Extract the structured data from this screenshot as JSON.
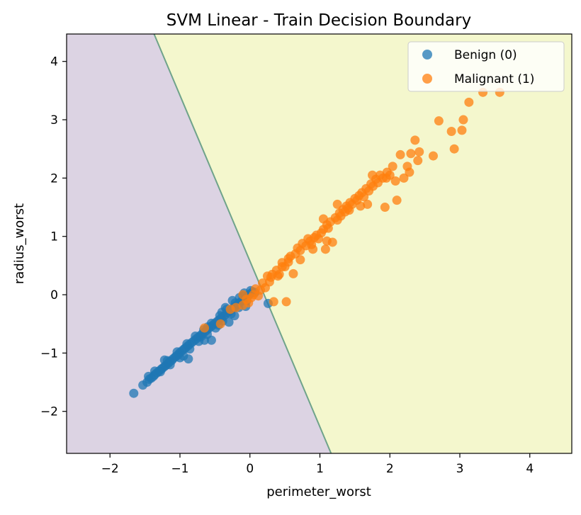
{
  "chart_data": {
    "type": "scatter",
    "title": "SVM Linear - Train Decision Boundary",
    "xlabel": "perimeter_worst",
    "ylabel": "radius_worst",
    "xlim": [
      -2.62,
      4.6
    ],
    "ylim": [
      -2.72,
      4.47
    ],
    "xticks": [
      -2,
      -1,
      0,
      1,
      2,
      3,
      4
    ],
    "yticks": [
      -2,
      -1,
      0,
      1,
      2,
      3,
      4
    ],
    "xtick_labels": [
      "−2",
      "−1",
      "0",
      "1",
      "2",
      "3",
      "4"
    ],
    "ytick_labels": [
      "−2",
      "−1",
      "0",
      "1",
      "2",
      "3",
      "4"
    ],
    "grid": false,
    "legend_position": "top-right",
    "decision_boundary": {
      "points": [
        [
          -1.37,
          4.47
        ],
        [
          1.16,
          -2.72
        ]
      ],
      "left_region_color": "#dcd3e3",
      "right_region_color": "#f4f7cd",
      "line_color": "#6fa38a"
    },
    "series": [
      {
        "name": "Benign (0)",
        "color": "#1f77b4",
        "points": [
          [
            -1.66,
            -1.69
          ],
          [
            -1.53,
            -1.55
          ],
          [
            -1.47,
            -1.5
          ],
          [
            -1.44,
            -1.45
          ],
          [
            -1.41,
            -1.43
          ],
          [
            -1.38,
            -1.4
          ],
          [
            -1.36,
            -1.37
          ],
          [
            -1.33,
            -1.34
          ],
          [
            -1.3,
            -1.31
          ],
          [
            -1.27,
            -1.28
          ],
          [
            -1.25,
            -1.26
          ],
          [
            -1.22,
            -1.23
          ],
          [
            -1.2,
            -1.21
          ],
          [
            -1.17,
            -1.18
          ],
          [
            -1.15,
            -1.15
          ],
          [
            -1.12,
            -1.13
          ],
          [
            -1.1,
            -1.1
          ],
          [
            -1.07,
            -1.07
          ],
          [
            -1.05,
            -1.05
          ],
          [
            -1.02,
            -1.02
          ],
          [
            -1.0,
            -0.99
          ],
          [
            -0.97,
            -0.96
          ],
          [
            -0.94,
            -0.93
          ],
          [
            -0.92,
            -0.91
          ],
          [
            -0.89,
            -0.88
          ],
          [
            -0.86,
            -0.85
          ],
          [
            -0.83,
            -0.82
          ],
          [
            -0.8,
            -0.79
          ],
          [
            -0.77,
            -0.76
          ],
          [
            -0.74,
            -0.73
          ],
          [
            -0.71,
            -0.7
          ],
          [
            -0.68,
            -0.67
          ],
          [
            -0.65,
            -0.64
          ],
          [
            -0.62,
            -0.61
          ],
          [
            -0.59,
            -0.58
          ],
          [
            -0.56,
            -0.55
          ],
          [
            -0.53,
            -0.52
          ],
          [
            -0.5,
            -0.49
          ],
          [
            -0.47,
            -0.46
          ],
          [
            -0.44,
            -0.43
          ],
          [
            -0.41,
            -0.4
          ],
          [
            -0.38,
            -0.37
          ],
          [
            -0.35,
            -0.34
          ],
          [
            -0.32,
            -0.31
          ],
          [
            -0.29,
            -0.28
          ],
          [
            -0.26,
            -0.25
          ],
          [
            -0.23,
            -0.22
          ],
          [
            -0.2,
            -0.19
          ],
          [
            -0.17,
            -0.16
          ],
          [
            -0.14,
            -0.13
          ],
          [
            -0.11,
            -0.1
          ],
          [
            -0.08,
            -0.07
          ],
          [
            -0.05,
            -0.04
          ],
          [
            -0.02,
            -0.01
          ],
          [
            0.01,
            0.02
          ],
          [
            0.04,
            0.05
          ],
          [
            0.07,
            0.04
          ],
          [
            -1.36,
            -1.31
          ],
          [
            -1.28,
            -1.32
          ],
          [
            -1.18,
            -1.13
          ],
          [
            -1.14,
            -1.2
          ],
          [
            -1.04,
            -0.98
          ],
          [
            -1.0,
            -1.08
          ],
          [
            -0.9,
            -0.84
          ],
          [
            -0.86,
            -0.93
          ],
          [
            -0.78,
            -0.71
          ],
          [
            -0.73,
            -0.8
          ],
          [
            -0.66,
            -0.6
          ],
          [
            -0.61,
            -0.68
          ],
          [
            -0.55,
            -0.49
          ],
          [
            -0.49,
            -0.57
          ],
          [
            -0.43,
            -0.36
          ],
          [
            -0.39,
            -0.45
          ],
          [
            -0.33,
            -0.25
          ],
          [
            -0.27,
            -0.33
          ],
          [
            -0.21,
            -0.14
          ],
          [
            -0.16,
            -0.22
          ],
          [
            -0.1,
            -0.02
          ],
          [
            -0.05,
            -0.11
          ],
          [
            0.01,
            0.07
          ],
          [
            -0.88,
            -1.1
          ],
          [
            -0.55,
            -0.78
          ],
          [
            -0.45,
            -0.52
          ],
          [
            -0.3,
            -0.47
          ],
          [
            -0.22,
            -0.36
          ],
          [
            -0.06,
            -0.2
          ],
          [
            0.26,
            -0.15
          ],
          [
            -0.95,
            -1.05
          ],
          [
            -0.7,
            -0.72
          ],
          [
            -0.65,
            -0.78
          ],
          [
            -0.6,
            -0.55
          ],
          [
            -0.4,
            -0.3
          ],
          [
            -0.35,
            -0.22
          ],
          [
            -0.25,
            -0.1
          ],
          [
            -0.15,
            -0.05
          ],
          [
            -0.08,
            0.03
          ],
          [
            -1.22,
            -1.12
          ],
          [
            -1.45,
            -1.4
          ]
        ]
      },
      {
        "name": "Malignant (1)",
        "color": "#ff7f0e",
        "points": [
          [
            -0.65,
            -0.57
          ],
          [
            -0.42,
            -0.5
          ],
          [
            -0.28,
            -0.25
          ],
          [
            -0.2,
            -0.22
          ],
          [
            -0.1,
            -0.18
          ],
          [
            -0.05,
            -0.08
          ],
          [
            0.02,
            -0.05
          ],
          [
            0.08,
            0.1
          ],
          [
            0.12,
            -0.02
          ],
          [
            0.18,
            0.2
          ],
          [
            0.22,
            0.12
          ],
          [
            0.25,
            0.32
          ],
          [
            0.3,
            0.3
          ],
          [
            0.34,
            -0.12
          ],
          [
            0.38,
            0.42
          ],
          [
            0.42,
            0.35
          ],
          [
            0.46,
            0.55
          ],
          [
            0.5,
            0.48
          ],
          [
            0.52,
            -0.12
          ],
          [
            0.55,
            0.62
          ],
          [
            0.58,
            0.66
          ],
          [
            0.62,
            0.36
          ],
          [
            0.65,
            0.7
          ],
          [
            0.68,
            0.8
          ],
          [
            0.72,
            0.76
          ],
          [
            0.75,
            0.88
          ],
          [
            0.8,
            0.84
          ],
          [
            0.83,
            0.96
          ],
          [
            0.86,
            0.92
          ],
          [
            0.88,
            0.86
          ],
          [
            0.92,
            0.98
          ],
          [
            0.95,
            1.02
          ],
          [
            0.98,
            0.96
          ],
          [
            1.02,
            1.06
          ],
          [
            1.05,
            1.12
          ],
          [
            1.08,
            0.78
          ],
          [
            1.1,
            1.2
          ],
          [
            1.12,
            1.14
          ],
          [
            1.15,
            1.25
          ],
          [
            1.18,
            0.9
          ],
          [
            1.22,
            1.32
          ],
          [
            1.25,
            1.28
          ],
          [
            1.28,
            1.4
          ],
          [
            1.3,
            1.35
          ],
          [
            1.33,
            1.46
          ],
          [
            1.36,
            1.42
          ],
          [
            1.38,
            1.52
          ],
          [
            1.4,
            1.48
          ],
          [
            1.43,
            1.58
          ],
          [
            1.46,
            1.55
          ],
          [
            1.5,
            1.65
          ],
          [
            1.53,
            1.62
          ],
          [
            1.56,
            1.7
          ],
          [
            1.58,
            1.52
          ],
          [
            1.6,
            1.75
          ],
          [
            1.63,
            1.68
          ],
          [
            1.66,
            1.82
          ],
          [
            1.7,
            1.78
          ],
          [
            1.73,
            1.9
          ],
          [
            1.76,
            1.86
          ],
          [
            1.8,
            1.98
          ],
          [
            1.83,
            1.92
          ],
          [
            1.86,
            2.05
          ],
          [
            1.9,
            2.0
          ],
          [
            1.93,
            1.5
          ],
          [
            1.96,
            2.1
          ],
          [
            2.0,
            2.05
          ],
          [
            2.04,
            2.2
          ],
          [
            2.08,
            1.95
          ],
          [
            2.1,
            1.62
          ],
          [
            2.15,
            2.4
          ],
          [
            2.2,
            2.0
          ],
          [
            2.25,
            2.2
          ],
          [
            2.28,
            2.1
          ],
          [
            2.3,
            2.42
          ],
          [
            2.36,
            2.65
          ],
          [
            2.4,
            2.3
          ],
          [
            2.42,
            2.45
          ],
          [
            2.62,
            2.38
          ],
          [
            2.7,
            2.98
          ],
          [
            2.88,
            2.8
          ],
          [
            2.92,
            2.5
          ],
          [
            3.03,
            2.82
          ],
          [
            3.05,
            3.0
          ],
          [
            3.13,
            3.3
          ],
          [
            3.33,
            3.47
          ],
          [
            3.57,
            3.47
          ],
          [
            0.46,
            0.48
          ],
          [
            0.55,
            0.56
          ],
          [
            0.72,
            0.6
          ],
          [
            0.9,
            0.78
          ],
          [
            1.1,
            0.92
          ],
          [
            1.05,
            1.3
          ],
          [
            1.25,
            1.55
          ],
          [
            1.42,
            1.45
          ],
          [
            1.68,
            1.55
          ],
          [
            1.75,
            2.05
          ],
          [
            1.95,
            2.0
          ],
          [
            -0.1,
            0.0
          ],
          [
            -0.02,
            -0.14
          ],
          [
            0.05,
            0.0
          ],
          [
            0.15,
            0.08
          ],
          [
            0.28,
            0.22
          ],
          [
            0.32,
            0.35
          ],
          [
            0.4,
            0.32
          ]
        ]
      }
    ]
  }
}
